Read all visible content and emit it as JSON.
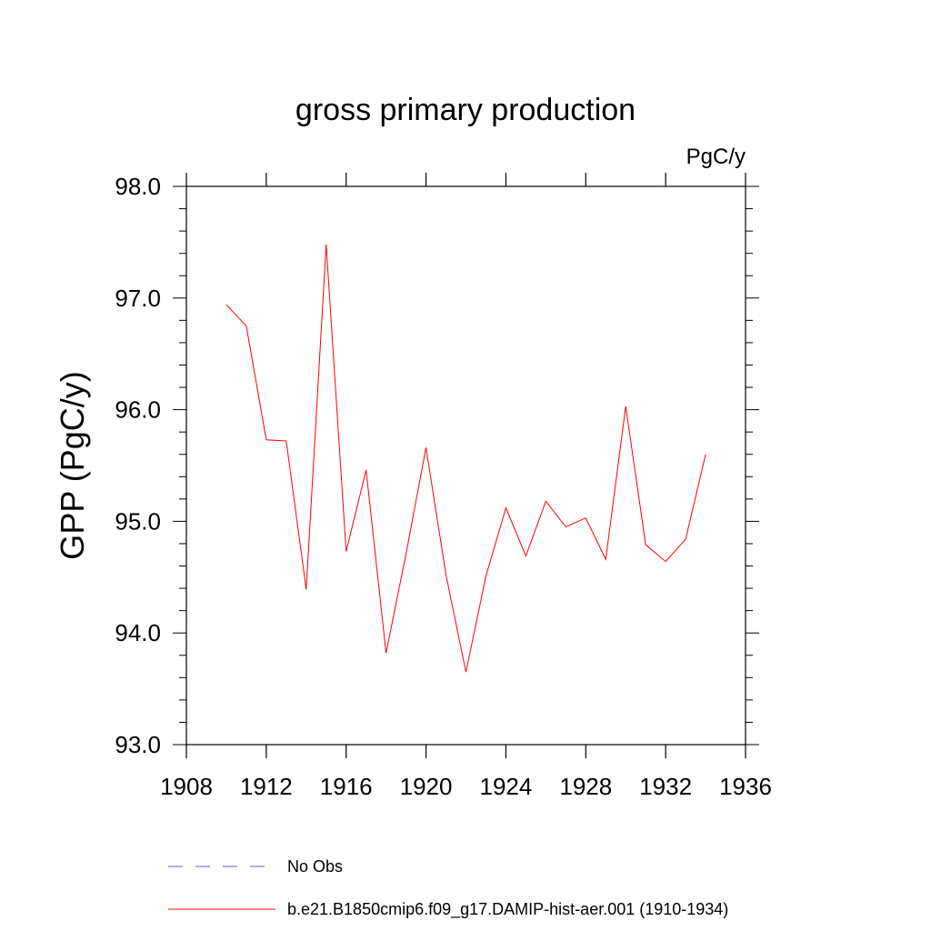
{
  "chart_data": {
    "type": "line",
    "title": "gross primary production",
    "units_label": "PgC/y",
    "ylabel": "GPP  (PgC/y)",
    "xlabel": "",
    "xlim": [
      1908,
      1936
    ],
    "ylim": [
      93.0,
      98.0
    ],
    "x_ticks": [
      1908,
      1912,
      1916,
      1920,
      1924,
      1928,
      1932,
      1936
    ],
    "x_tick_labels": [
      "1908",
      "1912",
      "1916",
      "1920",
      "1924",
      "1928",
      "1932",
      "1936"
    ],
    "y_ticks": [
      93.0,
      94.0,
      95.0,
      96.0,
      97.0,
      98.0
    ],
    "y_tick_labels": [
      "93.0",
      "94.0",
      "95.0",
      "96.0",
      "97.0",
      "98.0"
    ],
    "grid": false,
    "legend_position": "bottom",
    "series": [
      {
        "name": "b.e21.B1850cmip6.f09_g17.DAMIP-hist-aer.001 (1910-1934)",
        "color": "#ff0000",
        "style": "solid",
        "x": [
          1910,
          1911,
          1912,
          1913,
          1914,
          1915,
          1916,
          1917,
          1918,
          1919,
          1920,
          1921,
          1922,
          1923,
          1924,
          1925,
          1926,
          1927,
          1928,
          1929,
          1930,
          1931,
          1932,
          1933,
          1934
        ],
        "y": [
          96.94,
          96.75,
          95.73,
          95.72,
          94.39,
          97.48,
          94.73,
          95.46,
          93.82,
          94.71,
          95.66,
          94.52,
          93.65,
          94.51,
          95.12,
          94.69,
          95.18,
          94.95,
          95.03,
          94.66,
          96.03,
          94.79,
          94.64,
          94.84,
          95.6
        ]
      }
    ],
    "legend": [
      {
        "label": "No Obs",
        "color": "#6a5acd",
        "style": "dashed"
      },
      {
        "label": "b.e21.B1850cmip6.f09_g17.DAMIP-hist-aer.001 (1910-1934)",
        "color": "#ff0000",
        "style": "solid"
      }
    ]
  }
}
